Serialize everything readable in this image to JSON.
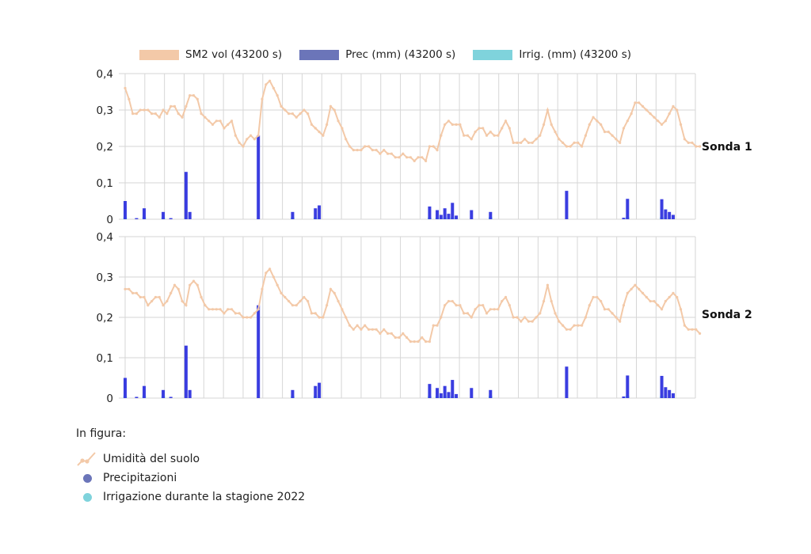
{
  "legend": {
    "items": [
      {
        "label": "SM2 vol (43200 s)",
        "color": "#f3c9a8"
      },
      {
        "label": "Prec (mm) (43200 s)",
        "color": "#6b75b9"
      },
      {
        "label": "Irrig. (mm) (43200 s)",
        "color": "#7fd3dc"
      }
    ]
  },
  "bottom_legend": {
    "title": "In figura:",
    "items": [
      {
        "label": "Umidità del suolo",
        "icon": "line-dot-icon",
        "color": "#f3c9a8"
      },
      {
        "label": "Precipitazioni",
        "icon": "dot-icon",
        "color": "#6b75b9"
      },
      {
        "label": "Irrigazione durante la stagione 2022",
        "icon": "dot-icon",
        "color": "#7fd3dc"
      }
    ]
  },
  "colors": {
    "soil": "#f3c9a8",
    "precip_bar": "#3a3de0",
    "precip_legend": "#6b75b9",
    "irrig_bar": "#37e6ef",
    "irrig_legend": "#7fd3dc",
    "grid": "#d6d6d6"
  },
  "chart_data": [
    {
      "type": "line",
      "panel_label": "Sonda 1",
      "ylim": [
        0,
        0.4
      ],
      "yticks": [
        "0",
        "0,1",
        "0,2",
        "0,3",
        "0,4"
      ],
      "ytick_values": [
        0,
        0.1,
        0.2,
        0.3,
        0.4
      ],
      "grid": true,
      "x_index_count": 150,
      "soil_moisture": [
        0.36,
        0.33,
        0.29,
        0.29,
        0.3,
        0.3,
        0.3,
        0.29,
        0.29,
        0.28,
        0.3,
        0.29,
        0.31,
        0.31,
        0.29,
        0.28,
        0.31,
        0.34,
        0.34,
        0.33,
        0.29,
        0.28,
        0.27,
        0.26,
        0.27,
        0.27,
        0.25,
        0.26,
        0.27,
        0.23,
        0.21,
        0.2,
        0.22,
        0.23,
        0.22,
        0.23,
        0.33,
        0.37,
        0.38,
        0.36,
        0.34,
        0.31,
        0.3,
        0.29,
        0.29,
        0.28,
        0.29,
        0.3,
        0.29,
        0.26,
        0.25,
        0.24,
        0.23,
        0.26,
        0.31,
        0.3,
        0.27,
        0.25,
        0.22,
        0.2,
        0.19,
        0.19,
        0.19,
        0.2,
        0.2,
        0.19,
        0.19,
        0.18,
        0.19,
        0.18,
        0.18,
        0.17,
        0.17,
        0.18,
        0.17,
        0.17,
        0.16,
        0.17,
        0.17,
        0.16,
        0.2,
        0.2,
        0.19,
        0.23,
        0.26,
        0.27,
        0.26,
        0.26,
        0.26,
        0.23,
        0.23,
        0.22,
        0.24,
        0.25,
        0.25,
        0.23,
        0.24,
        0.23,
        0.23,
        0.25,
        0.27,
        0.25,
        0.21,
        0.21,
        0.21,
        0.22,
        0.21,
        0.21,
        0.22,
        0.23,
        0.26,
        0.3,
        0.26,
        0.24,
        0.22,
        0.21,
        0.2,
        0.2,
        0.21,
        0.21,
        0.2,
        0.23,
        0.26,
        0.28,
        0.27,
        0.26,
        0.24,
        0.24,
        0.23,
        0.22,
        0.21,
        0.25,
        0.27,
        0.29,
        0.32,
        0.32,
        0.31,
        0.3,
        0.29,
        0.28,
        0.27,
        0.26,
        0.27,
        0.29,
        0.31,
        0.3,
        0.26,
        0.22,
        0.21,
        0.21,
        0.2,
        0.2
      ],
      "precip": [
        0.05,
        0,
        0,
        0.003,
        0,
        0.03,
        0,
        0,
        0,
        0,
        0.02,
        0,
        0.003,
        0,
        0,
        0,
        0.13,
        0.02,
        0,
        0,
        0,
        0,
        0,
        0,
        0,
        0,
        0,
        0,
        0,
        0,
        0,
        0,
        0,
        0,
        0,
        0.23,
        0,
        0,
        0,
        0,
        0,
        0,
        0,
        0,
        0.02,
        0,
        0,
        0,
        0,
        0,
        0.03,
        0.038,
        0,
        0,
        0,
        0,
        0,
        0,
        0,
        0,
        0,
        0,
        0,
        0,
        0,
        0,
        0,
        0,
        0,
        0,
        0,
        0,
        0,
        0,
        0,
        0,
        0,
        0,
        0,
        0,
        0.035,
        0,
        0.025,
        0.012,
        0.03,
        0.015,
        0.045,
        0.01,
        0,
        0,
        0,
        0.025,
        0,
        0,
        0,
        0,
        0.02,
        0,
        0,
        0,
        0,
        0,
        0,
        0,
        0,
        0,
        0,
        0,
        0,
        0,
        0,
        0,
        0,
        0,
        0,
        0,
        0.078,
        0,
        0,
        0,
        0,
        0,
        0,
        0,
        0,
        0,
        0,
        0,
        0,
        0,
        0,
        0.004,
        0.056,
        0,
        0,
        0,
        0,
        0,
        0,
        0,
        0,
        0.055,
        0.027,
        0.02,
        0.012,
        0,
        0,
        0,
        0,
        0,
        0
      ],
      "irrig": [
        0.006,
        0,
        0,
        0,
        0,
        0.006,
        0,
        0,
        0,
        0,
        0.005,
        0,
        0,
        0,
        0,
        0,
        0,
        0,
        0,
        0,
        0,
        0,
        0,
        0,
        0,
        0,
        0,
        0,
        0,
        0,
        0,
        0,
        0,
        0,
        0,
        0,
        0,
        0,
        0,
        0,
        0,
        0,
        0,
        0,
        0.005,
        0,
        0,
        0,
        0,
        0,
        0.005,
        0,
        0,
        0,
        0,
        0,
        0,
        0,
        0,
        0,
        0,
        0,
        0,
        0,
        0,
        0,
        0,
        0,
        0,
        0,
        0,
        0,
        0,
        0,
        0,
        0,
        0,
        0,
        0,
        0,
        0.005,
        0,
        0.005,
        0,
        0.005,
        0,
        0.005,
        0,
        0,
        0,
        0,
        0,
        0,
        0,
        0,
        0,
        0.006,
        0,
        0,
        0,
        0,
        0,
        0,
        0,
        0,
        0,
        0,
        0,
        0,
        0,
        0,
        0,
        0,
        0,
        0,
        0,
        0,
        0,
        0,
        0,
        0,
        0,
        0,
        0,
        0,
        0,
        0,
        0,
        0,
        0,
        0,
        0,
        0.006,
        0,
        0,
        0,
        0,
        0,
        0,
        0,
        0,
        0.006,
        0,
        0,
        0,
        0,
        0,
        0,
        0,
        0,
        0
      ]
    },
    {
      "type": "line",
      "panel_label": "Sonda 2",
      "ylim": [
        0,
        0.4
      ],
      "yticks": [
        "0",
        "0,1",
        "0,2",
        "0,3",
        "0,4"
      ],
      "ytick_values": [
        0,
        0.1,
        0.2,
        0.3,
        0.4
      ],
      "grid": true,
      "x_index_count": 150,
      "soil_moisture": [
        0.27,
        0.27,
        0.26,
        0.26,
        0.25,
        0.25,
        0.23,
        0.24,
        0.25,
        0.25,
        0.23,
        0.24,
        0.26,
        0.28,
        0.27,
        0.24,
        0.23,
        0.28,
        0.29,
        0.28,
        0.25,
        0.23,
        0.22,
        0.22,
        0.22,
        0.22,
        0.21,
        0.22,
        0.22,
        0.21,
        0.21,
        0.2,
        0.2,
        0.2,
        0.21,
        0.22,
        0.27,
        0.31,
        0.32,
        0.3,
        0.28,
        0.26,
        0.25,
        0.24,
        0.23,
        0.23,
        0.24,
        0.25,
        0.24,
        0.21,
        0.21,
        0.2,
        0.2,
        0.23,
        0.27,
        0.26,
        0.24,
        0.22,
        0.2,
        0.18,
        0.17,
        0.18,
        0.17,
        0.18,
        0.17,
        0.17,
        0.17,
        0.16,
        0.17,
        0.16,
        0.16,
        0.15,
        0.15,
        0.16,
        0.15,
        0.14,
        0.14,
        0.14,
        0.15,
        0.14,
        0.14,
        0.18,
        0.18,
        0.2,
        0.23,
        0.24,
        0.24,
        0.23,
        0.23,
        0.21,
        0.21,
        0.2,
        0.22,
        0.23,
        0.23,
        0.21,
        0.22,
        0.22,
        0.22,
        0.24,
        0.25,
        0.23,
        0.2,
        0.2,
        0.19,
        0.2,
        0.19,
        0.19,
        0.2,
        0.21,
        0.24,
        0.28,
        0.24,
        0.21,
        0.19,
        0.18,
        0.17,
        0.17,
        0.18,
        0.18,
        0.18,
        0.2,
        0.23,
        0.25,
        0.25,
        0.24,
        0.22,
        0.22,
        0.21,
        0.2,
        0.19,
        0.23,
        0.26,
        0.27,
        0.28,
        0.27,
        0.26,
        0.25,
        0.24,
        0.24,
        0.23,
        0.22,
        0.24,
        0.25,
        0.26,
        0.25,
        0.22,
        0.18,
        0.17,
        0.17,
        0.17,
        0.16
      ],
      "precip": [
        0.05,
        0,
        0,
        0.003,
        0,
        0.03,
        0,
        0,
        0,
        0,
        0.02,
        0,
        0.003,
        0,
        0,
        0,
        0.13,
        0.02,
        0,
        0,
        0,
        0,
        0,
        0,
        0,
        0,
        0,
        0,
        0,
        0,
        0,
        0,
        0,
        0,
        0,
        0.23,
        0,
        0,
        0,
        0,
        0,
        0,
        0,
        0,
        0.02,
        0,
        0,
        0,
        0,
        0,
        0.03,
        0.038,
        0,
        0,
        0,
        0,
        0,
        0,
        0,
        0,
        0,
        0,
        0,
        0,
        0,
        0,
        0,
        0,
        0,
        0,
        0,
        0,
        0,
        0,
        0,
        0,
        0,
        0,
        0,
        0,
        0.035,
        0,
        0.025,
        0.012,
        0.03,
        0.015,
        0.045,
        0.01,
        0,
        0,
        0,
        0.025,
        0,
        0,
        0,
        0,
        0.02,
        0,
        0,
        0,
        0,
        0,
        0,
        0,
        0,
        0,
        0,
        0,
        0,
        0,
        0,
        0,
        0,
        0,
        0,
        0,
        0.078,
        0,
        0,
        0,
        0,
        0,
        0,
        0,
        0,
        0,
        0,
        0,
        0,
        0,
        0,
        0.004,
        0.056,
        0,
        0,
        0,
        0,
        0,
        0,
        0,
        0,
        0.055,
        0.027,
        0.02,
        0.012,
        0,
        0,
        0,
        0,
        0,
        0
      ],
      "irrig": [
        0.006,
        0,
        0,
        0,
        0,
        0.006,
        0,
        0,
        0,
        0,
        0.005,
        0,
        0,
        0,
        0,
        0,
        0,
        0,
        0,
        0,
        0,
        0,
        0,
        0,
        0,
        0,
        0,
        0,
        0,
        0,
        0,
        0,
        0,
        0,
        0,
        0,
        0,
        0,
        0,
        0,
        0,
        0,
        0,
        0,
        0.005,
        0,
        0,
        0,
        0,
        0,
        0.005,
        0,
        0,
        0,
        0,
        0,
        0,
        0,
        0,
        0,
        0,
        0,
        0,
        0,
        0,
        0,
        0,
        0,
        0,
        0,
        0,
        0,
        0,
        0,
        0,
        0,
        0,
        0,
        0,
        0,
        0.005,
        0,
        0.005,
        0,
        0.005,
        0,
        0.005,
        0,
        0,
        0,
        0,
        0,
        0,
        0,
        0,
        0,
        0.006,
        0,
        0,
        0,
        0,
        0,
        0,
        0,
        0,
        0,
        0,
        0,
        0,
        0,
        0,
        0,
        0,
        0,
        0,
        0,
        0,
        0,
        0,
        0,
        0,
        0,
        0,
        0,
        0,
        0,
        0,
        0,
        0,
        0,
        0,
        0,
        0.006,
        0,
        0,
        0,
        0,
        0,
        0,
        0,
        0,
        0.006,
        0,
        0,
        0,
        0,
        0,
        0,
        0,
        0,
        0
      ]
    }
  ]
}
